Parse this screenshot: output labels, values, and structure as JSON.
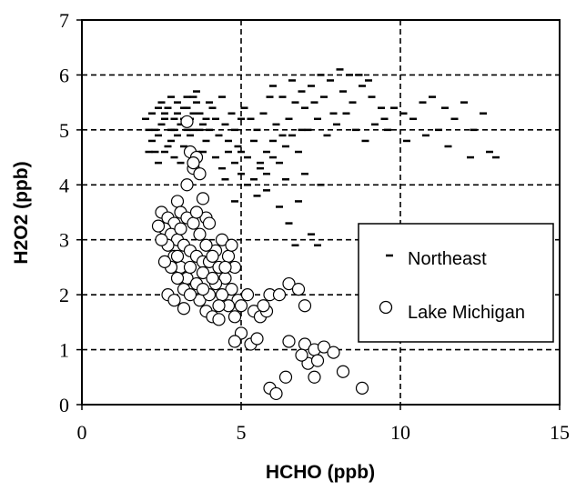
{
  "chart_data": {
    "type": "scatter",
    "xlabel": "HCHO (ppb)",
    "ylabel": "H2O2 (ppb)",
    "xlim": [
      0,
      15
    ],
    "ylim": [
      0,
      7
    ],
    "xticks": [
      "0",
      "5",
      "10",
      "15"
    ],
    "yticks": [
      "0",
      "1",
      "2",
      "3",
      "4",
      "5",
      "6",
      "7"
    ],
    "grid": "dashed, x every 5, y every 1",
    "legend_position": "right, middle",
    "series": [
      {
        "name": "Northeast",
        "marker": "dash",
        "points": [
          [
            2.0,
            5.2
          ],
          [
            2.1,
            5.0
          ],
          [
            2.2,
            4.8
          ],
          [
            2.3,
            4.6
          ],
          [
            2.4,
            4.9
          ],
          [
            2.5,
            5.1
          ],
          [
            2.6,
            5.3
          ],
          [
            2.7,
            4.7
          ],
          [
            2.8,
            5.0
          ],
          [
            2.9,
            5.2
          ],
          [
            3.0,
            4.9
          ],
          [
            3.1,
            5.1
          ],
          [
            3.2,
            5.4
          ],
          [
            3.3,
            5.6
          ],
          [
            3.4,
            5.2
          ],
          [
            3.5,
            5.0
          ],
          [
            3.6,
            5.5
          ],
          [
            3.7,
            5.3
          ],
          [
            3.8,
            5.1
          ],
          [
            3.9,
            4.8
          ],
          [
            2.2,
            5.3
          ],
          [
            2.4,
            4.4
          ],
          [
            2.6,
            4.6
          ],
          [
            2.8,
            4.8
          ],
          [
            3.0,
            5.3
          ],
          [
            3.2,
            4.7
          ],
          [
            3.4,
            4.9
          ],
          [
            3.6,
            5.7
          ],
          [
            3.8,
            4.6
          ],
          [
            4.0,
            5.0
          ],
          [
            2.5,
            5.5
          ],
          [
            2.7,
            5.4
          ],
          [
            2.9,
            4.5
          ],
          [
            3.1,
            4.4
          ],
          [
            3.3,
            5.0
          ],
          [
            3.5,
            5.6
          ],
          [
            2.3,
            5.0
          ],
          [
            2.6,
            5.2
          ],
          [
            2.9,
            5.0
          ],
          [
            3.2,
            5.2
          ],
          [
            4.1,
            5.4
          ],
          [
            4.2,
            5.2
          ],
          [
            4.3,
            4.9
          ],
          [
            4.4,
            5.6
          ],
          [
            4.5,
            5.1
          ],
          [
            4.6,
            4.8
          ],
          [
            4.7,
            5.3
          ],
          [
            4.8,
            5.0
          ],
          [
            4.9,
            4.7
          ],
          [
            5.0,
            5.2
          ],
          [
            4.2,
            4.5
          ],
          [
            4.4,
            4.3
          ],
          [
            4.6,
            4.6
          ],
          [
            4.8,
            4.4
          ],
          [
            5.0,
            4.6
          ],
          [
            5.2,
            4.5
          ],
          [
            5.4,
            4.8
          ],
          [
            5.6,
            4.4
          ],
          [
            5.8,
            4.2
          ],
          [
            6.0,
            4.5
          ],
          [
            5.1,
            5.4
          ],
          [
            5.3,
            5.2
          ],
          [
            5.5,
            5.0
          ],
          [
            5.7,
            5.3
          ],
          [
            5.9,
            5.6
          ],
          [
            6.1,
            5.1
          ],
          [
            6.3,
            4.9
          ],
          [
            6.5,
            5.2
          ],
          [
            6.7,
            5.5
          ],
          [
            6.9,
            5.0
          ],
          [
            5.0,
            4.2
          ],
          [
            5.2,
            4.0
          ],
          [
            5.4,
            4.1
          ],
          [
            5.6,
            4.3
          ],
          [
            5.8,
            4.6
          ],
          [
            6.0,
            4.8
          ],
          [
            6.2,
            4.4
          ],
          [
            6.4,
            4.7
          ],
          [
            6.6,
            4.9
          ],
          [
            6.8,
            4.6
          ],
          [
            6.0,
            5.8
          ],
          [
            6.3,
            5.6
          ],
          [
            6.6,
            5.9
          ],
          [
            6.9,
            5.7
          ],
          [
            7.2,
            5.8
          ],
          [
            7.5,
            6.0
          ],
          [
            7.8,
            5.9
          ],
          [
            8.1,
            6.1
          ],
          [
            8.4,
            6.0
          ],
          [
            7.0,
            5.4
          ],
          [
            7.3,
            5.5
          ],
          [
            7.6,
            5.6
          ],
          [
            7.9,
            5.3
          ],
          [
            8.2,
            5.7
          ],
          [
            8.5,
            5.5
          ],
          [
            8.8,
            5.8
          ],
          [
            9.1,
            5.6
          ],
          [
            9.4,
            5.4
          ],
          [
            9.0,
            5.9
          ],
          [
            8.7,
            6.0
          ],
          [
            7.1,
            5.0
          ],
          [
            7.4,
            5.2
          ],
          [
            7.7,
            4.9
          ],
          [
            8.0,
            5.1
          ],
          [
            8.3,
            5.3
          ],
          [
            8.6,
            5.0
          ],
          [
            8.9,
            4.8
          ],
          [
            9.2,
            5.1
          ],
          [
            9.5,
            5.2
          ],
          [
            9.8,
            5.4
          ],
          [
            10.1,
            5.3
          ],
          [
            10.4,
            5.2
          ],
          [
            10.7,
            5.5
          ],
          [
            11.0,
            5.6
          ],
          [
            11.4,
            5.4
          ],
          [
            11.7,
            5.2
          ],
          [
            12.0,
            5.5
          ],
          [
            12.3,
            5.0
          ],
          [
            12.6,
            5.3
          ],
          [
            13.0,
            4.5
          ],
          [
            11.5,
            4.7
          ],
          [
            12.2,
            4.5
          ],
          [
            10.8,
            4.9
          ],
          [
            9.6,
            5.0
          ],
          [
            10.2,
            4.8
          ],
          [
            12.8,
            4.6
          ],
          [
            11.2,
            5.0
          ],
          [
            7.0,
            4.2
          ],
          [
            7.5,
            4.0
          ],
          [
            6.4,
            4.1
          ],
          [
            6.2,
            3.6
          ],
          [
            5.8,
            3.9
          ],
          [
            6.8,
            3.7
          ],
          [
            6.5,
            3.3
          ],
          [
            7.2,
            3.1
          ],
          [
            6.7,
            2.9
          ],
          [
            7.4,
            2.9
          ],
          [
            5.5,
            3.8
          ],
          [
            4.8,
            3.7
          ],
          [
            4.5,
            4.1
          ],
          [
            3.0,
            5.5
          ],
          [
            3.3,
            5.4
          ],
          [
            3.5,
            5.3
          ],
          [
            2.8,
            5.6
          ],
          [
            3.7,
            5.0
          ],
          [
            3.9,
            5.2
          ],
          [
            4.0,
            5.5
          ],
          [
            2.1,
            4.6
          ],
          [
            2.4,
            5.4
          ],
          [
            3.6,
            4.6
          ]
        ]
      },
      {
        "name": "Lake Michigan",
        "marker": "open-circle",
        "points": [
          [
            3.3,
            5.15
          ],
          [
            3.4,
            4.6
          ],
          [
            3.6,
            4.5
          ],
          [
            3.5,
            4.3
          ],
          [
            3.7,
            4.2
          ],
          [
            3.5,
            4.4
          ],
          [
            3.3,
            4.0
          ],
          [
            3.8,
            3.75
          ],
          [
            3.0,
            3.7
          ],
          [
            3.1,
            3.5
          ],
          [
            2.5,
            3.5
          ],
          [
            2.7,
            3.4
          ],
          [
            2.9,
            3.3
          ],
          [
            2.6,
            3.2
          ],
          [
            2.8,
            3.1
          ],
          [
            3.0,
            3.0
          ],
          [
            3.2,
            2.9
          ],
          [
            3.4,
            2.8
          ],
          [
            3.6,
            2.7
          ],
          [
            3.8,
            2.6
          ],
          [
            2.7,
            2.9
          ],
          [
            2.9,
            2.7
          ],
          [
            3.1,
            2.5
          ],
          [
            3.3,
            2.3
          ],
          [
            3.5,
            2.1
          ],
          [
            3.7,
            1.9
          ],
          [
            3.9,
            1.7
          ],
          [
            4.1,
            1.6
          ],
          [
            4.3,
            1.55
          ],
          [
            2.8,
            2.5
          ],
          [
            3.0,
            2.3
          ],
          [
            3.2,
            2.1
          ],
          [
            3.4,
            2.0
          ],
          [
            3.6,
            2.2
          ],
          [
            3.8,
            2.4
          ],
          [
            4.0,
            2.6
          ],
          [
            4.2,
            2.8
          ],
          [
            4.4,
            3.0
          ],
          [
            4.6,
            2.7
          ],
          [
            4.8,
            2.5
          ],
          [
            3.1,
            3.2
          ],
          [
            3.3,
            3.4
          ],
          [
            3.5,
            3.3
          ],
          [
            3.7,
            3.1
          ],
          [
            3.9,
            2.9
          ],
          [
            4.1,
            2.7
          ],
          [
            4.3,
            2.5
          ],
          [
            4.5,
            2.3
          ],
          [
            4.7,
            2.1
          ],
          [
            4.9,
            1.9
          ],
          [
            3.9,
            3.4
          ],
          [
            4.0,
            3.3
          ],
          [
            4.2,
            2.2
          ],
          [
            4.4,
            2.0
          ],
          [
            4.6,
            1.8
          ],
          [
            4.8,
            1.6
          ],
          [
            5.0,
            1.8
          ],
          [
            5.2,
            2.0
          ],
          [
            5.4,
            1.7
          ],
          [
            5.6,
            1.6
          ],
          [
            5.8,
            1.7
          ],
          [
            5.9,
            2.0
          ],
          [
            6.2,
            2.0
          ],
          [
            6.5,
            2.2
          ],
          [
            6.8,
            2.1
          ],
          [
            7.0,
            1.8
          ],
          [
            5.7,
            1.8
          ],
          [
            2.7,
            2.0
          ],
          [
            2.9,
            1.9
          ],
          [
            3.2,
            1.75
          ],
          [
            5.0,
            1.3
          ],
          [
            5.3,
            1.1
          ],
          [
            5.5,
            1.2
          ],
          [
            4.8,
            1.15
          ],
          [
            6.5,
            1.15
          ],
          [
            7.0,
            1.1
          ],
          [
            7.3,
            1.0
          ],
          [
            7.6,
            1.05
          ],
          [
            7.9,
            0.95
          ],
          [
            7.1,
            0.75
          ],
          [
            7.4,
            0.8
          ],
          [
            6.9,
            0.9
          ],
          [
            6.4,
            0.5
          ],
          [
            7.3,
            0.5
          ],
          [
            8.2,
            0.6
          ],
          [
            8.8,
            0.3
          ],
          [
            5.9,
            0.3
          ],
          [
            6.1,
            0.2
          ],
          [
            2.4,
            3.25
          ],
          [
            2.5,
            3.0
          ],
          [
            3.0,
            2.7
          ],
          [
            4.0,
            2.0
          ],
          [
            4.3,
            1.8
          ],
          [
            4.5,
            2.5
          ],
          [
            4.7,
            2.9
          ],
          [
            3.6,
            3.5
          ],
          [
            2.6,
            2.6
          ],
          [
            3.4,
            2.5
          ],
          [
            3.8,
            2.1
          ],
          [
            4.1,
            2.3
          ]
        ]
      }
    ]
  }
}
